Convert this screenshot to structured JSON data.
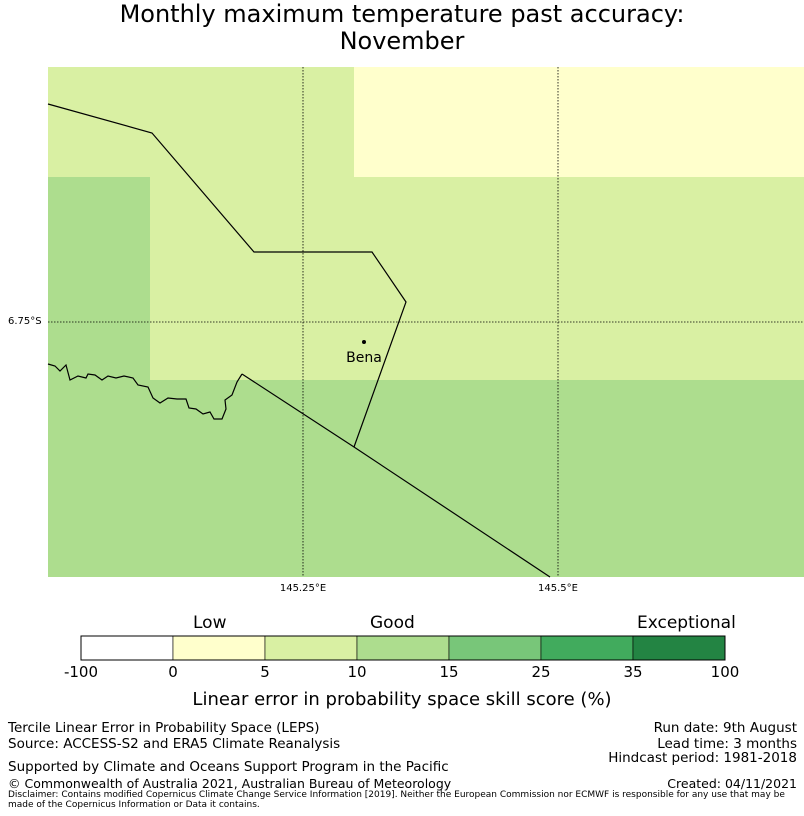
{
  "title_line1": "Monthly maximum temperature past accuracy:",
  "title_line2": "November",
  "map": {
    "lat_label": "6.75°S",
    "lon_labels": [
      "145.25°E",
      "145.5°E"
    ],
    "place": {
      "name": "Bena"
    },
    "cells": [
      {
        "category": "Good",
        "range": "5 to 10"
      },
      {
        "category": "Low",
        "range": "0 to 5"
      },
      {
        "category": "Good",
        "range": "10 to 15"
      }
    ]
  },
  "colorbar": {
    "category_labels": [
      "Low",
      "Good",
      "Exceptional"
    ],
    "ticks": [
      "-100",
      "0",
      "5",
      "10",
      "15",
      "25",
      "35",
      "100"
    ],
    "colors": [
      "#ffffff",
      "#ffffcc",
      "#d9f0a3",
      "#addd8e",
      "#78c679",
      "#41ab5d",
      "#238443"
    ],
    "title": "Linear error in probability space skill score (%)"
  },
  "footer": {
    "left": [
      "Tercile Linear Error in Probability Space (LEPS)",
      "Source: ACCESS-S2 and ERA5 Climate Reanalysis",
      "Supported by Climate and Oceans Support Program in the Pacific",
      "© Commonwealth of Australia 2021, Australian Bureau of Meteorology"
    ],
    "right": [
      "Run date: 9th August",
      "Lead time: 3 months",
      "Hindcast period: 1981-2018",
      "Created: 04/11/2021"
    ],
    "disclaimer": "Disclaimer: Contains modified Copernicus Climate Change Service Information [2019]. Neither the European Commission nor ECMWF is responsible for any use that may be made of the Copernicus Information or Data it contains."
  }
}
